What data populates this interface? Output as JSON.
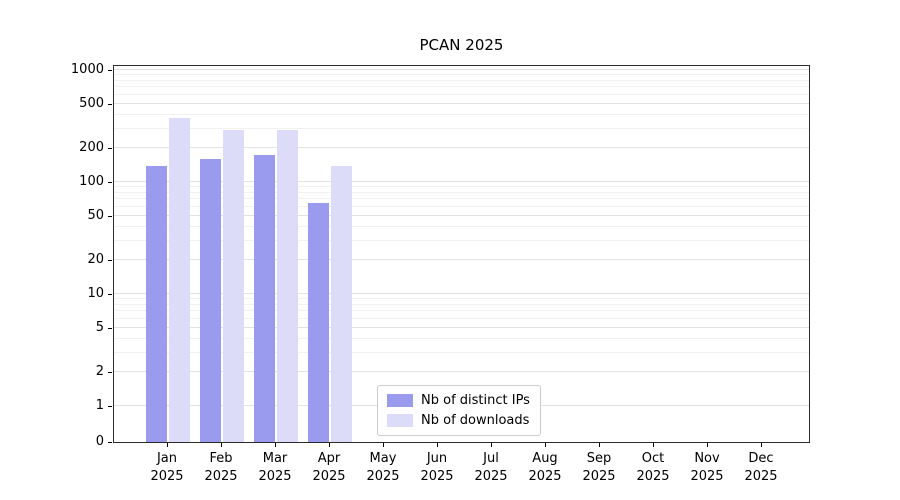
{
  "chart_data": {
    "type": "bar",
    "title": "PCAN 2025",
    "scale": "symlog",
    "grid": true,
    "categories": [
      "Jan",
      "Feb",
      "Mar",
      "Apr",
      "May",
      "Jun",
      "Jul",
      "Aug",
      "Sep",
      "Oct",
      "Nov",
      "Dec"
    ],
    "year": "2025",
    "series": [
      {
        "name": "Nb of distinct IPs",
        "color": "#9a9aee",
        "values": [
          140,
          160,
          175,
          65,
          0,
          0,
          0,
          0,
          0,
          0,
          0,
          0
        ]
      },
      {
        "name": "Nb of downloads",
        "color": "#dcdcf8",
        "values": [
          370,
          290,
          290,
          140,
          0,
          0,
          0,
          0,
          0,
          0,
          0,
          0
        ]
      }
    ],
    "yticks": [
      0,
      1,
      2,
      5,
      10,
      20,
      50,
      100,
      200,
      500,
      1000
    ],
    "minor_yticks": [
      3,
      4,
      6,
      7,
      8,
      9,
      30,
      40,
      60,
      70,
      80,
      90,
      300,
      400,
      600,
      700,
      800,
      900
    ],
    "ylim": [
      0,
      1150
    ],
    "legend_position": "lower center"
  }
}
